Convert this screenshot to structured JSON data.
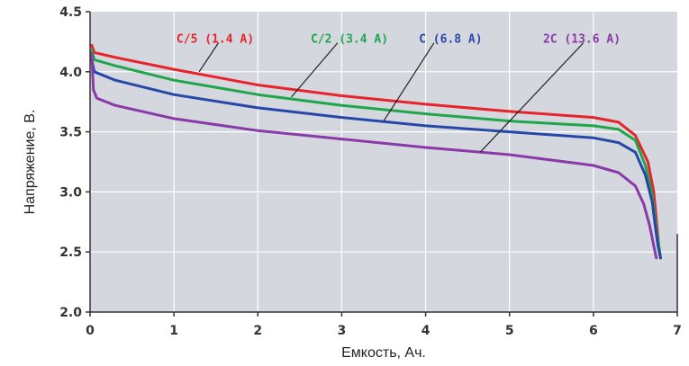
{
  "chart_data": {
    "type": "line",
    "title": "",
    "xlabel": "Емкость, Ач.",
    "ylabel": "Напряжение, В.",
    "xlim": [
      0,
      7
    ],
    "ylim": [
      2.0,
      4.5
    ],
    "x_ticks": [
      "0",
      "1",
      "2",
      "3",
      "4",
      "5",
      "6",
      "7"
    ],
    "y_ticks": [
      "2.0",
      "2.5",
      "3.0",
      "3.5",
      "4.0",
      "4.5"
    ],
    "grid": true,
    "background_color": "#d4d8de",
    "series": [
      {
        "name": "C/5 (1.4 A)",
        "color": "#e8232b",
        "x": [
          0.02,
          0.05,
          0.3,
          1.0,
          2.0,
          3.0,
          4.0,
          5.0,
          6.0,
          6.3,
          6.5,
          6.65,
          6.72,
          6.76,
          6.78,
          6.8
        ],
        "y": [
          4.22,
          4.16,
          4.12,
          4.02,
          3.89,
          3.8,
          3.73,
          3.67,
          3.62,
          3.58,
          3.47,
          3.25,
          3.0,
          2.7,
          2.55,
          2.45
        ]
      },
      {
        "name": "C/2 (3.4 A)",
        "color": "#1fa64a",
        "x": [
          0.02,
          0.05,
          0.3,
          1.0,
          2.0,
          3.0,
          4.0,
          5.0,
          6.0,
          6.3,
          6.5,
          6.62,
          6.7,
          6.75,
          6.78,
          6.8
        ],
        "y": [
          4.18,
          4.1,
          4.05,
          3.93,
          3.81,
          3.72,
          3.65,
          3.59,
          3.55,
          3.52,
          3.43,
          3.22,
          2.98,
          2.7,
          2.55,
          2.45
        ]
      },
      {
        "name": "C (6.8 A)",
        "color": "#2747a8",
        "x": [
          0.02,
          0.05,
          0.3,
          1.0,
          2.0,
          3.0,
          4.0,
          5.0,
          6.0,
          6.3,
          6.5,
          6.62,
          6.7,
          6.74,
          6.77,
          6.8
        ],
        "y": [
          4.1,
          4.0,
          3.93,
          3.81,
          3.7,
          3.62,
          3.55,
          3.5,
          3.45,
          3.41,
          3.33,
          3.14,
          2.92,
          2.7,
          2.55,
          2.45
        ]
      },
      {
        "name": "2C (13.6 A)",
        "color": "#8a3aa8",
        "x": [
          0.02,
          0.04,
          0.08,
          0.3,
          1.0,
          2.0,
          3.0,
          4.0,
          5.0,
          6.0,
          6.3,
          6.5,
          6.6,
          6.67,
          6.72,
          6.75
        ],
        "y": [
          4.15,
          3.85,
          3.78,
          3.72,
          3.61,
          3.51,
          3.44,
          3.37,
          3.31,
          3.22,
          3.16,
          3.05,
          2.9,
          2.72,
          2.55,
          2.45
        ]
      }
    ],
    "annotations": [
      {
        "text": "C/5 (1.4 A)",
        "color": "#e8232b",
        "label_x": 1.03,
        "label_y": 4.28,
        "line_from": [
          1.53,
          4.24
        ],
        "line_to": [
          1.3,
          4.0
        ]
      },
      {
        "text": "C/2 (3.4 A)",
        "color": "#1fa64a",
        "label_x": 2.63,
        "label_y": 4.28,
        "line_from": [
          2.95,
          4.24
        ],
        "line_to": [
          2.4,
          3.79
        ]
      },
      {
        "text": "C (6.8 A)",
        "color": "#2747a8",
        "label_x": 3.92,
        "label_y": 4.28,
        "line_from": [
          4.1,
          4.24
        ],
        "line_to": [
          3.5,
          3.59
        ]
      },
      {
        "text": "2C (13.6 A)",
        "color": "#8a3aa8",
        "label_x": 5.4,
        "label_y": 4.28,
        "line_from": [
          5.88,
          4.24
        ],
        "line_to": [
          4.65,
          3.33
        ]
      }
    ]
  }
}
